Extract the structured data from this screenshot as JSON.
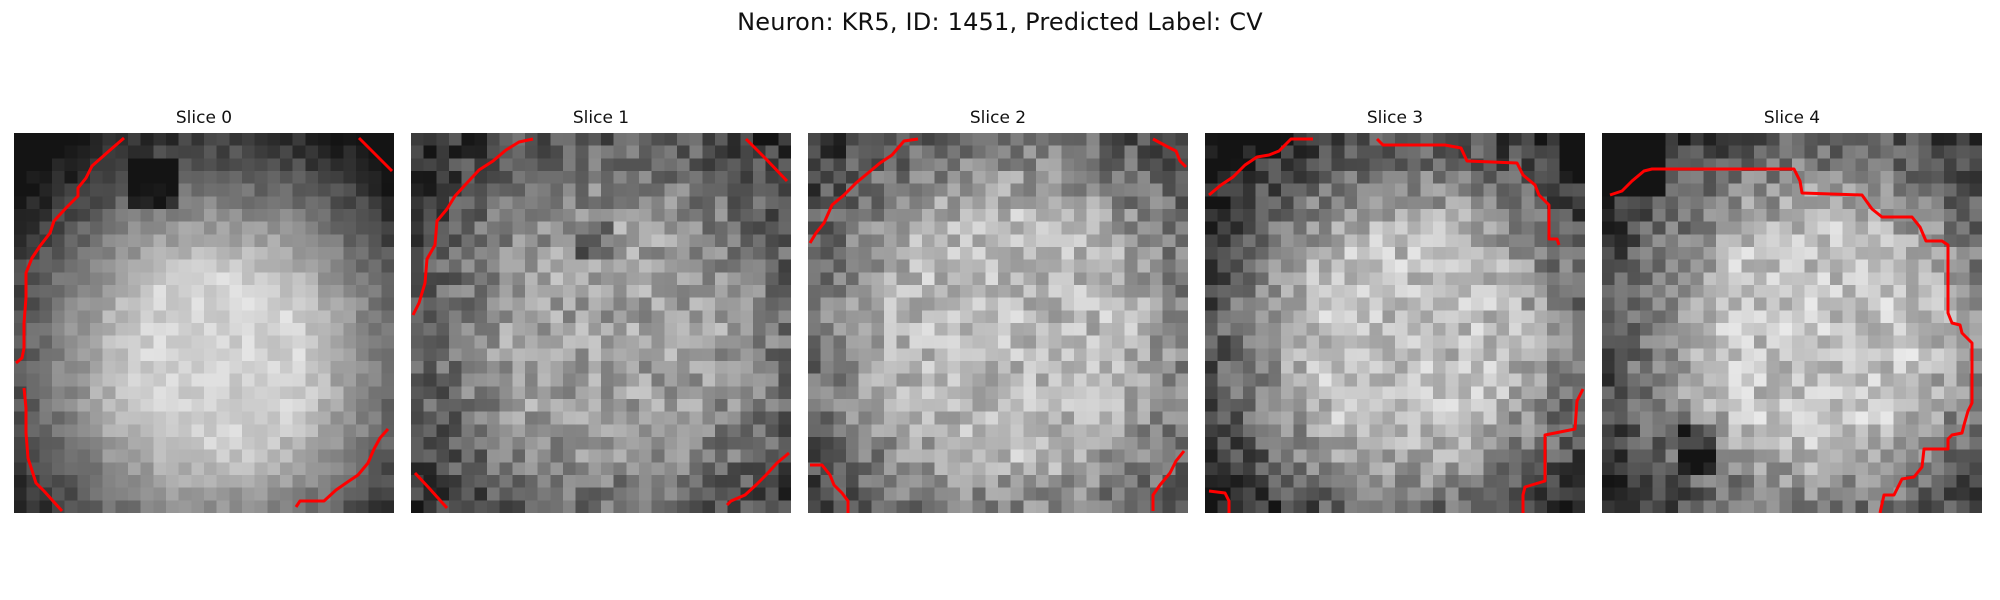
{
  "figure": {
    "title": "Neuron: KR5, ID: 1451, Predicted Label: CV"
  },
  "contour_color": "#ff0000",
  "slices": [
    {
      "title": "Slice 0"
    },
    {
      "title": "Slice 1"
    },
    {
      "title": "Slice 2"
    },
    {
      "title": "Slice 3"
    },
    {
      "title": "Slice 4"
    }
  ]
}
